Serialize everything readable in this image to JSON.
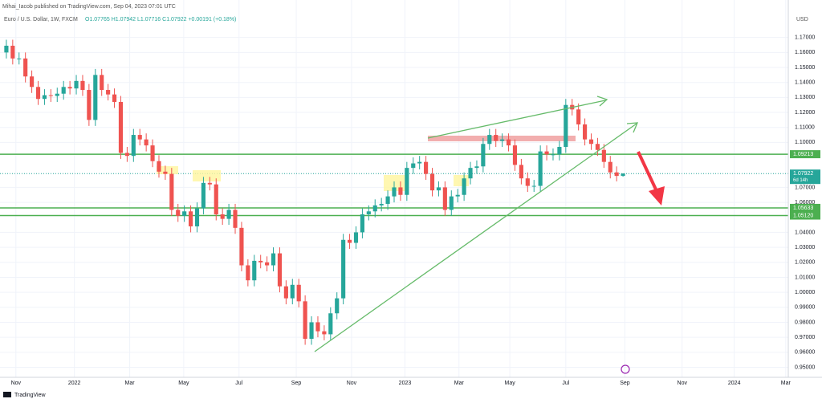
{
  "chart_data": {
    "type": "candlestick",
    "author_line": "Mihai_Iacob published on TradingView.com, Sep 04, 2023 07:01 UTC",
    "title": "Euro / U.S. Dollar, 1W, FXCM",
    "ohlc_header": "O1.07765 H1.07942 L1.07716 C1.07922 +0.00191 (+0.18%)",
    "currency": "USD",
    "brand": "TradingView",
    "countdown": "6d 14h",
    "up_color": "#26a69a",
    "down_color": "#ef5350",
    "level_color": "#4caf50",
    "grid": true,
    "open": [
      1.16,
      1.1645,
      1.156,
      1.156,
      1.144,
      1.137,
      1.129,
      1.1315,
      1.131,
      1.1325,
      1.137,
      1.136,
      1.141,
      1.135,
      1.115,
      1.145,
      1.135,
      1.132,
      1.127,
      1.093,
      1.091,
      1.105,
      1.102,
      1.098,
      1.0875,
      1.0805,
      1.079,
      1.055,
      1.051,
      1.054,
      1.044,
      1.056,
      1.073,
      1.072,
      1.052,
      1.049,
      1.055,
      1.043,
      1.018,
      1.008,
      1.021,
      1.02,
      1.018,
      1.026,
      1.004,
      0.996,
      1.005,
      0.994,
      0.969,
      0.98,
      0.974,
      0.972,
      0.986,
      0.996,
      1.035,
      1.033,
      1.04,
      1.052,
      1.054,
      1.058,
      1.059,
      1.064,
      1.07,
      1.065,
      1.083,
      1.086,
      1.087,
      1.079,
      1.068,
      1.07,
      1.055,
      1.064,
      1.065,
      1.076,
      1.083,
      1.084,
      1.099,
      1.105,
      1.101,
      1.102,
      1.098,
      1.085,
      1.076,
      1.071,
      1.071,
      1.094,
      1.092,
      1.092,
      1.097,
      1.125,
      1.122,
      1.112,
      1.102,
      1.099,
      1.095,
      1.087,
      1.08,
      1.07765
    ],
    "high": [
      1.1685,
      1.1685,
      1.16,
      1.16,
      1.148,
      1.141,
      1.1355,
      1.1355,
      1.1365,
      1.141,
      1.141,
      1.145,
      1.145,
      1.139,
      1.149,
      1.149,
      1.139,
      1.136,
      1.131,
      1.097,
      1.109,
      1.109,
      1.106,
      1.102,
      1.0915,
      1.0845,
      1.083,
      1.059,
      1.058,
      1.058,
      1.06,
      1.077,
      1.077,
      1.076,
      1.056,
      1.059,
      1.059,
      1.047,
      1.022,
      1.025,
      1.025,
      1.024,
      1.03,
      1.03,
      1.008,
      1.009,
      1.009,
      0.998,
      0.984,
      0.984,
      0.978,
      0.99,
      1.0,
      1.039,
      1.039,
      1.044,
      1.056,
      1.058,
      1.062,
      1.063,
      1.068,
      1.074,
      1.074,
      1.087,
      1.09,
      1.091,
      1.091,
      1.083,
      1.074,
      1.074,
      1.068,
      1.069,
      1.08,
      1.087,
      1.088,
      1.103,
      1.109,
      1.109,
      1.106,
      1.106,
      1.102,
      1.089,
      1.08,
      1.075,
      1.098,
      1.098,
      1.096,
      1.101,
      1.129,
      1.129,
      1.126,
      1.116,
      1.106,
      1.103,
      1.099,
      1.091,
      1.084,
      1.07942
    ],
    "low": [
      1.156,
      1.152,
      1.152,
      1.14,
      1.133,
      1.125,
      1.125,
      1.127,
      1.127,
      1.1285,
      1.132,
      1.132,
      1.131,
      1.111,
      1.111,
      1.131,
      1.128,
      1.123,
      1.089,
      1.087,
      1.087,
      1.098,
      1.094,
      1.0835,
      1.0765,
      1.075,
      1.051,
      1.047,
      1.047,
      1.04,
      1.04,
      1.052,
      1.068,
      1.048,
      1.045,
      1.045,
      1.039,
      1.014,
      1.004,
      1.004,
      1.016,
      1.014,
      1.014,
      1.0,
      0.992,
      0.992,
      0.99,
      0.965,
      0.965,
      0.97,
      0.968,
      0.968,
      0.982,
      0.992,
      1.029,
      1.029,
      1.036,
      1.048,
      1.05,
      1.054,
      1.055,
      1.06,
      1.061,
      1.061,
      1.079,
      1.082,
      1.075,
      1.064,
      1.064,
      1.051,
      1.051,
      1.06,
      1.061,
      1.072,
      1.079,
      1.08,
      1.095,
      1.097,
      1.097,
      1.094,
      1.081,
      1.072,
      1.067,
      1.067,
      1.067,
      1.088,
      1.088,
      1.088,
      1.093,
      1.118,
      1.108,
      1.098,
      1.095,
      1.091,
      1.083,
      1.076,
      1.074,
      1.07716
    ],
    "close": [
      1.1645,
      1.156,
      1.156,
      1.144,
      1.137,
      1.129,
      1.1315,
      1.131,
      1.1325,
      1.137,
      1.136,
      1.141,
      1.135,
      1.115,
      1.145,
      1.135,
      1.132,
      1.127,
      1.093,
      1.091,
      1.105,
      1.102,
      1.098,
      1.0875,
      1.0805,
      1.079,
      1.055,
      1.051,
      1.054,
      1.044,
      1.056,
      1.073,
      1.072,
      1.052,
      1.049,
      1.055,
      1.043,
      1.018,
      1.008,
      1.021,
      1.02,
      1.018,
      1.026,
      1.004,
      0.996,
      1.005,
      0.994,
      0.969,
      0.98,
      0.974,
      0.972,
      0.986,
      0.996,
      1.035,
      1.033,
      1.04,
      1.052,
      1.054,
      1.058,
      1.059,
      1.064,
      1.07,
      1.065,
      1.083,
      1.086,
      1.087,
      1.079,
      1.068,
      1.07,
      1.055,
      1.064,
      1.065,
      1.076,
      1.083,
      1.084,
      1.099,
      1.105,
      1.101,
      1.102,
      1.098,
      1.085,
      1.076,
      1.071,
      1.071,
      1.094,
      1.092,
      1.092,
      1.097,
      1.125,
      1.122,
      1.112,
      1.102,
      1.099,
      1.095,
      1.087,
      1.08,
      1.07765,
      1.07922
    ],
    "levels": [
      1.09213,
      1.05633,
      {
        "value": 1.0512,
        "label": "1.05120"
      }
    ],
    "ylim": [
      0.9433,
      1.195
    ],
    "yticks": [
      {
        "value": 1.17,
        "label": "1.17000"
      },
      {
        "value": 1.16,
        "label": "1.16000"
      },
      {
        "value": 1.15,
        "label": "1.15000"
      },
      {
        "value": 1.14,
        "label": "1.14000"
      },
      {
        "value": 1.13,
        "label": "1.13000"
      },
      {
        "value": 1.12,
        "label": "1.12000"
      },
      {
        "value": 1.11,
        "label": "1.11000"
      },
      {
        "value": 1.1,
        "label": "1.10000"
      },
      {
        "value": 1.07,
        "label": "1.07000"
      },
      {
        "value": 1.06,
        "label": "1.06000"
      },
      {
        "value": 1.04,
        "label": "1.04000"
      },
      {
        "value": 1.03,
        "label": "1.03000"
      },
      {
        "value": 1.02,
        "label": "1.02000"
      },
      {
        "value": 1.01,
        "label": "1.01000"
      },
      {
        "value": 1.0,
        "label": "1.00000"
      },
      {
        "value": 0.99,
        "label": "0.99000"
      },
      {
        "value": 0.98,
        "label": "0.98000"
      },
      {
        "value": 0.97,
        "label": "0.97000"
      },
      {
        "value": 0.96,
        "label": "0.96000"
      },
      {
        "value": 0.95,
        "label": "0.95000"
      }
    ],
    "xlim": [
      -1,
      123
    ],
    "xticks": [
      {
        "value": 1.5,
        "label": "Nov"
      },
      {
        "value": 10.7,
        "label": "2022"
      },
      {
        "value": 19.4,
        "label": "Mar"
      },
      {
        "value": 27.9,
        "label": "May"
      },
      {
        "value": 36.6,
        "label": "Jul"
      },
      {
        "value": 45.6,
        "label": "Sep"
      },
      {
        "value": 54.3,
        "label": "Nov"
      },
      {
        "value": 62.7,
        "label": "2023"
      },
      {
        "value": 71.2,
        "label": "Mar"
      },
      {
        "value": 79.2,
        "label": "May"
      },
      {
        "value": 88,
        "label": "Jul"
      },
      {
        "value": 97.3,
        "label": "Sep"
      },
      {
        "value": 106.3,
        "label": "Nov"
      },
      {
        "value": 114.5,
        "label": "2024"
      },
      {
        "value": 122.6,
        "label": "Mar"
      }
    ]
  }
}
